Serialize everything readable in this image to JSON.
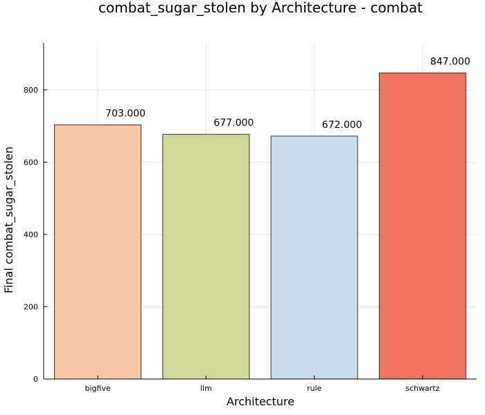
{
  "chart_data": {
    "type": "bar",
    "title": "combat_sugar_stolen by Architecture - combat",
    "xlabel": "Architecture",
    "ylabel": "Final combat_sugar_stolen",
    "categories": [
      "bigfive",
      "llm",
      "rule",
      "schwartz"
    ],
    "values": [
      703,
      677,
      672,
      847
    ],
    "value_labels": [
      "703.000",
      "677.000",
      "672.000",
      "847.000"
    ],
    "colors": [
      "#f4c7a2",
      "#d1d796",
      "#c9dceb",
      "#ef7460"
    ],
    "ylim": [
      0,
      930
    ],
    "yticks": [
      0,
      200,
      400,
      600,
      800
    ],
    "grid": true,
    "legend": "none"
  }
}
